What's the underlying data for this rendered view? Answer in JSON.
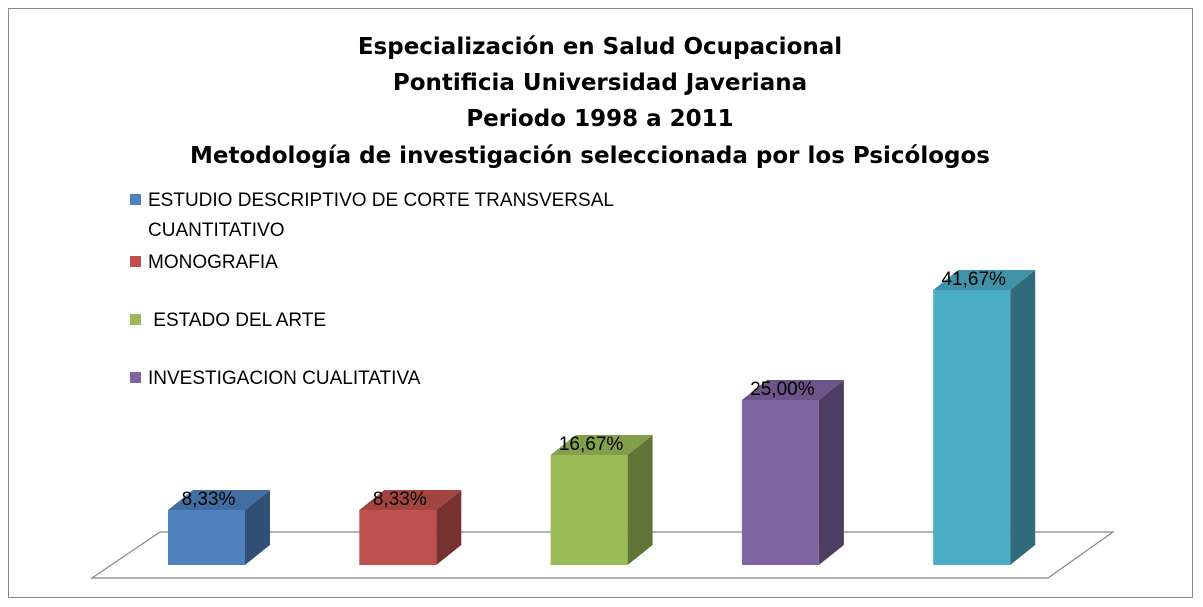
{
  "chart_data": {
    "type": "bar3d",
    "title": [
      "Especialización en Salud Ocupacional",
      "Pontificia Universidad Javeriana",
      "Periodo  1998 a 2011",
      "Metodología  de investigación seleccionada por los Psicólogos"
    ],
    "categories": [
      "ESTUDIO DESCRIPTIVO DE CORTE TRANSVERSAL CUANTITATIVO",
      "MONOGRAFIA",
      " ESTADO DEL ARTE",
      "INVESTIGACION CUALITATIVA",
      null
    ],
    "values": [
      8.33,
      8.33,
      16.67,
      25.0,
      41.67
    ],
    "value_labels": [
      "8,33%",
      "8,33%",
      "16,67%",
      "25,00%",
      "41,67%"
    ],
    "colors": [
      "#4f81bd",
      "#c0504d",
      "#9bbb59",
      "#8064a2",
      "#4bacc6"
    ],
    "legend": "top-left"
  }
}
